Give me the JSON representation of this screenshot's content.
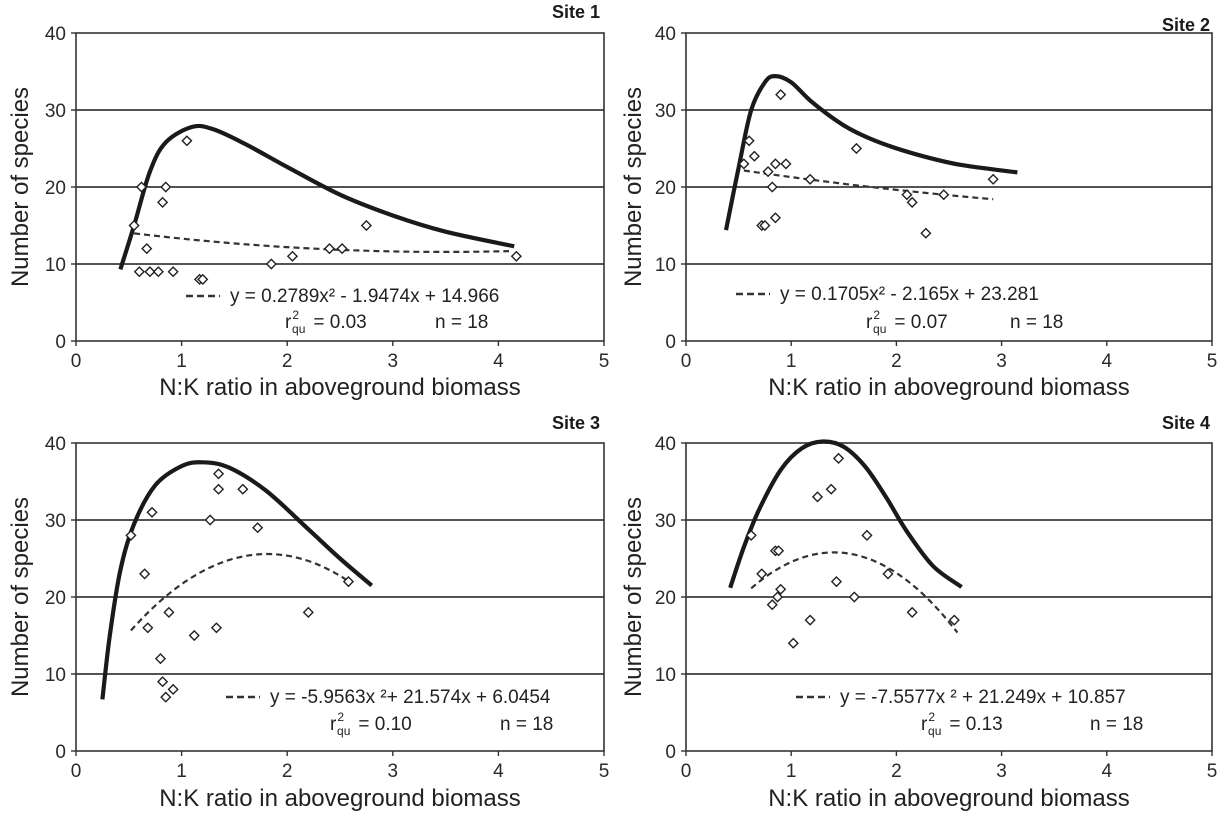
{
  "chart_data": [
    {
      "type": "scatter",
      "title": "Site 1",
      "xlabel": "N:K ratio in aboveground biomass",
      "ylabel": "Number of species",
      "xlim": [
        0,
        5
      ],
      "ylim": [
        0,
        40
      ],
      "xticks": [
        "0",
        "1",
        "2",
        "3",
        "4",
        "5"
      ],
      "yticks": [
        "0",
        "10",
        "20",
        "30",
        "40"
      ],
      "grid": "horizontal",
      "points": [
        [
          0.55,
          15
        ],
        [
          0.6,
          9
        ],
        [
          0.62,
          20
        ],
        [
          0.67,
          12
        ],
        [
          0.7,
          9
        ],
        [
          0.78,
          9
        ],
        [
          0.82,
          18
        ],
        [
          0.85,
          20
        ],
        [
          0.92,
          9
        ],
        [
          1.05,
          26
        ],
        [
          1.17,
          8
        ],
        [
          1.2,
          8
        ],
        [
          1.85,
          10
        ],
        [
          2.05,
          11
        ],
        [
          2.4,
          12
        ],
        [
          2.52,
          12
        ],
        [
          2.75,
          15
        ],
        [
          4.17,
          11
        ]
      ],
      "fit_line": {
        "x_range": [
          0.55,
          4.1
        ],
        "coef": [
          0.2789,
          -1.9474,
          14.966
        ]
      },
      "envelope": [
        [
          0.42,
          9.3
        ],
        [
          0.55,
          15
        ],
        [
          0.7,
          22
        ],
        [
          0.85,
          25.8
        ],
        [
          1.1,
          27.8
        ],
        [
          1.3,
          27.5
        ],
        [
          1.6,
          25.6
        ],
        [
          2.0,
          22.6
        ],
        [
          2.5,
          19.0
        ],
        [
          3.0,
          16.3
        ],
        [
          3.5,
          14.2
        ],
        [
          4.15,
          12.3
        ]
      ],
      "equation": "y = 0.2789x² - 1.9474x + 14.966",
      "r2_label": "r",
      "r2_sup": "2",
      "r2_sub": "qu",
      "r2_value": "= 0.03",
      "n_label": "n = 18"
    },
    {
      "type": "scatter",
      "title": "Site 2",
      "xlabel": "N:K ratio in aboveground biomass",
      "ylabel": "Number of species",
      "xlim": [
        0,
        5
      ],
      "ylim": [
        0,
        40
      ],
      "xticks": [
        "0",
        "1",
        "2",
        "3",
        "4",
        "5"
      ],
      "yticks": [
        "0",
        "10",
        "20",
        "30",
        "40"
      ],
      "grid": "horizontal",
      "points": [
        [
          0.55,
          23
        ],
        [
          0.6,
          26
        ],
        [
          0.65,
          24
        ],
        [
          0.72,
          15
        ],
        [
          0.75,
          15
        ],
        [
          0.78,
          22
        ],
        [
          0.82,
          20
        ],
        [
          0.85,
          16
        ],
        [
          0.85,
          23
        ],
        [
          0.9,
          32
        ],
        [
          0.95,
          23
        ],
        [
          1.18,
          21
        ],
        [
          1.62,
          25
        ],
        [
          2.1,
          19
        ],
        [
          2.15,
          18
        ],
        [
          2.28,
          14
        ],
        [
          2.45,
          19
        ],
        [
          2.92,
          21
        ]
      ],
      "fit_line": {
        "x_range": [
          0.55,
          2.92
        ],
        "coef": [
          0.1705,
          -2.165,
          23.281
        ]
      },
      "envelope": [
        [
          0.38,
          14.4
        ],
        [
          0.5,
          22.5
        ],
        [
          0.62,
          30.0
        ],
        [
          0.75,
          33.6
        ],
        [
          0.85,
          34.4
        ],
        [
          1.0,
          33.6
        ],
        [
          1.2,
          31.0
        ],
        [
          1.5,
          28.0
        ],
        [
          1.8,
          26.0
        ],
        [
          2.2,
          24.2
        ],
        [
          2.6,
          22.9
        ],
        [
          3.15,
          21.9
        ]
      ],
      "equation": "y = 0.1705x²  - 2.165x + 23.281",
      "r2_label": "r",
      "r2_sup": "2",
      "r2_sub": "qu",
      "r2_value": "= 0.07",
      "n_label": "n = 18"
    },
    {
      "type": "scatter",
      "title": "Site 3",
      "xlabel": "N:K ratio in aboveground biomass",
      "ylabel": "Number of species",
      "xlim": [
        0,
        5
      ],
      "ylim": [
        0,
        40
      ],
      "xticks": [
        "0",
        "1",
        "2",
        "3",
        "4",
        "5"
      ],
      "yticks": [
        "0",
        "10",
        "20",
        "30",
        "40"
      ],
      "grid": "horizontal",
      "points": [
        [
          0.52,
          28
        ],
        [
          0.65,
          23
        ],
        [
          0.68,
          16
        ],
        [
          0.72,
          31
        ],
        [
          0.8,
          12
        ],
        [
          0.82,
          9
        ],
        [
          0.85,
          7
        ],
        [
          0.88,
          18
        ],
        [
          0.92,
          8
        ],
        [
          1.12,
          15
        ],
        [
          1.27,
          30
        ],
        [
          1.33,
          16
        ],
        [
          1.35,
          34
        ],
        [
          1.35,
          36
        ],
        [
          1.58,
          34
        ],
        [
          1.72,
          29
        ],
        [
          2.2,
          18
        ],
        [
          2.58,
          22
        ]
      ],
      "fit_line": {
        "x_range": [
          0.52,
          2.58
        ],
        "coef": [
          -5.9563,
          21.574,
          6.0454
        ]
      },
      "envelope": [
        [
          0.25,
          6.7
        ],
        [
          0.32,
          15
        ],
        [
          0.42,
          23.5
        ],
        [
          0.55,
          29.5
        ],
        [
          0.75,
          34.5
        ],
        [
          1.0,
          37.0
        ],
        [
          1.2,
          37.5
        ],
        [
          1.45,
          36.8
        ],
        [
          1.8,
          33.8
        ],
        [
          2.2,
          28.8
        ],
        [
          2.5,
          25.0
        ],
        [
          2.8,
          21.5
        ]
      ],
      "equation": "y = -5.9563x ²+ 21.574x + 6.0454",
      "r2_label": "r",
      "r2_sup": "2",
      "r2_sub": "qu",
      "r2_value": "= 0.10",
      "n_label": "n = 18"
    },
    {
      "type": "scatter",
      "title": "Site 4",
      "xlabel": "N:K ratio in aboveground biomass",
      "ylabel": "Number of species",
      "xlim": [
        0,
        5
      ],
      "ylim": [
        0,
        40
      ],
      "xticks": [
        "0",
        "1",
        "2",
        "3",
        "4",
        "5"
      ],
      "yticks": [
        "0",
        "10",
        "20",
        "30",
        "40"
      ],
      "grid": "horizontal",
      "points": [
        [
          0.62,
          28
        ],
        [
          0.72,
          23
        ],
        [
          0.82,
          19
        ],
        [
          0.85,
          26
        ],
        [
          0.87,
          20
        ],
        [
          0.88,
          26
        ],
        [
          0.9,
          21
        ],
        [
          1.02,
          14
        ],
        [
          1.18,
          17
        ],
        [
          1.25,
          33
        ],
        [
          1.38,
          34
        ],
        [
          1.43,
          22
        ],
        [
          1.45,
          38
        ],
        [
          1.6,
          20
        ],
        [
          1.72,
          28
        ],
        [
          1.92,
          23
        ],
        [
          2.15,
          18
        ],
        [
          2.55,
          17
        ]
      ],
      "fit_line": {
        "x_range": [
          0.62,
          2.58
        ],
        "coef": [
          -7.5577,
          21.249,
          10.857
        ]
      },
      "envelope": [
        [
          0.42,
          21.2
        ],
        [
          0.55,
          26.5
        ],
        [
          0.7,
          31.5
        ],
        [
          0.9,
          36.5
        ],
        [
          1.1,
          39.3
        ],
        [
          1.3,
          40.2
        ],
        [
          1.5,
          39.5
        ],
        [
          1.7,
          37.0
        ],
        [
          1.9,
          33.0
        ],
        [
          2.1,
          28.5
        ],
        [
          2.35,
          24.0
        ],
        [
          2.62,
          21.3
        ]
      ],
      "equation": "y = -7.5577x ² + 21.249x + 10.857",
      "r2_label": "r",
      "r2_sup": "2",
      "r2_sub": "qu",
      "r2_value": "= 0.13",
      "n_label": "n = 18"
    }
  ]
}
